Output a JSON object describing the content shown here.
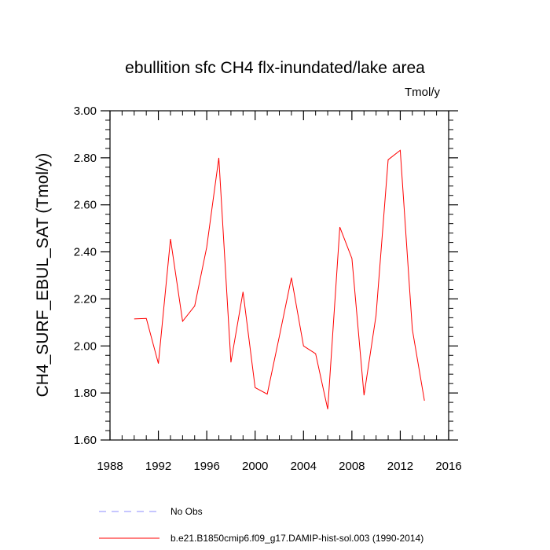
{
  "chart_data": {
    "type": "line",
    "title": "ebullition sfc CH4 flx-inundated/lake area",
    "units_label": "Tmol/y",
    "xlabel": "",
    "ylabel": "CH4_SURF_EBUL_SAT  (Tmol/y)",
    "xlim": [
      1988,
      2016
    ],
    "ylim": [
      1.6,
      3.0
    ],
    "x_ticks": [
      1988,
      1992,
      1996,
      2000,
      2004,
      2008,
      2012,
      2016
    ],
    "y_ticks": [
      1.6,
      1.8,
      2.0,
      2.2,
      2.4,
      2.6,
      2.8,
      3.0
    ],
    "y_tick_labels": [
      "1.60",
      "1.80",
      "2.00",
      "2.20",
      "2.40",
      "2.60",
      "2.80",
      "3.00"
    ],
    "grid": false,
    "series": [
      {
        "name": "b.e21.B1850cmip6.f09_g17.DAMIP-hist-sol.003 (1990-2014)",
        "color": "#ff0000",
        "style": "solid",
        "x": [
          1990,
          1991,
          1992,
          1993,
          1994,
          1995,
          1996,
          1997,
          1998,
          1999,
          2000,
          2001,
          2002,
          2003,
          2004,
          2005,
          2006,
          2007,
          2008,
          2009,
          2010,
          2011,
          2012,
          2013,
          2014
        ],
        "y": [
          2.115,
          2.117,
          1.925,
          2.455,
          2.105,
          2.17,
          2.42,
          2.8,
          1.93,
          2.23,
          1.823,
          1.795,
          2.04,
          2.29,
          2.0,
          1.967,
          1.731,
          2.505,
          2.372,
          1.79,
          2.13,
          2.792,
          2.832,
          2.07,
          1.767
        ]
      }
    ],
    "legend": {
      "placement": "bottom",
      "entries": [
        {
          "label": "No Obs",
          "color": "#8c8cff",
          "style": "dashed"
        },
        {
          "label": "b.e21.B1850cmip6.f09_g17.DAMIP-hist-sol.003 (1990-2014)",
          "color": "#ff0000",
          "style": "solid"
        }
      ]
    }
  }
}
